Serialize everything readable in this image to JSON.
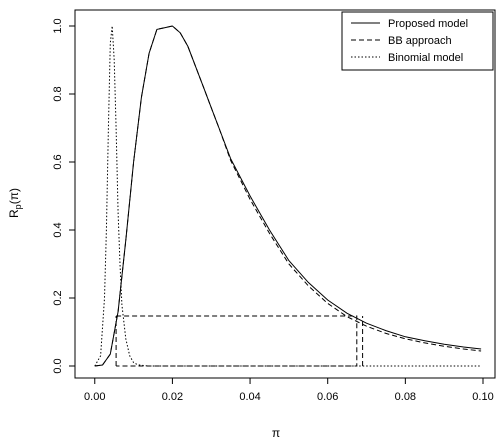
{
  "chart_data": {
    "type": "line",
    "xlabel": "π",
    "ylabel_main": "R",
    "ylabel_sub": "p",
    "ylabel_rest": "(π)",
    "xlim": [
      -0.002,
      0.1
    ],
    "ylim": [
      0,
      1
    ],
    "x_ticks": [
      {
        "value": 0.0,
        "label": "0.00"
      },
      {
        "value": 0.02,
        "label": "0.02"
      },
      {
        "value": 0.04,
        "label": "0.04"
      },
      {
        "value": 0.06,
        "label": "0.06"
      },
      {
        "value": 0.08,
        "label": "0.08"
      },
      {
        "value": 0.1,
        "label": "0.10"
      }
    ],
    "y_ticks": [
      {
        "value": 0.0,
        "label": "0.0"
      },
      {
        "value": 0.2,
        "label": "0.2"
      },
      {
        "value": 0.4,
        "label": "0.4"
      },
      {
        "value": 0.6,
        "label": "0.6"
      },
      {
        "value": 0.8,
        "label": "0.8"
      },
      {
        "value": 1.0,
        "label": "1.0"
      }
    ],
    "legend_position": "top-right",
    "series": [
      {
        "name": "Proposed model",
        "style": "solid",
        "x": [
          0.0,
          0.002,
          0.004,
          0.006,
          0.008,
          0.01,
          0.012,
          0.014,
          0.016,
          0.018,
          0.02,
          0.022,
          0.024,
          0.026,
          0.028,
          0.03,
          0.032,
          0.035,
          0.04,
          0.045,
          0.05,
          0.055,
          0.06,
          0.065,
          0.07,
          0.075,
          0.08,
          0.085,
          0.09,
          0.095,
          0.0995
        ],
        "y": [
          0.0,
          0.003,
          0.035,
          0.16,
          0.37,
          0.6,
          0.79,
          0.92,
          0.99,
          0.995,
          1.0,
          0.98,
          0.94,
          0.88,
          0.82,
          0.76,
          0.7,
          0.61,
          0.5,
          0.4,
          0.31,
          0.246,
          0.194,
          0.155,
          0.126,
          0.104,
          0.086,
          0.074,
          0.064,
          0.056,
          0.05
        ]
      },
      {
        "name": "BB approach",
        "style": "dashed",
        "x": [
          0.0,
          0.002,
          0.004,
          0.006,
          0.008,
          0.01,
          0.012,
          0.014,
          0.016,
          0.018,
          0.02,
          0.022,
          0.024,
          0.026,
          0.028,
          0.03,
          0.032,
          0.035,
          0.04,
          0.045,
          0.05,
          0.055,
          0.06,
          0.065,
          0.07,
          0.075,
          0.08,
          0.085,
          0.09,
          0.095,
          0.0995
        ],
        "y": [
          0.0,
          0.003,
          0.035,
          0.16,
          0.37,
          0.6,
          0.79,
          0.92,
          0.99,
          0.995,
          1.0,
          0.98,
          0.94,
          0.88,
          0.82,
          0.76,
          0.7,
          0.605,
          0.49,
          0.39,
          0.3,
          0.236,
          0.184,
          0.145,
          0.117,
          0.096,
          0.08,
          0.068,
          0.058,
          0.05,
          0.044
        ]
      },
      {
        "name": "Binomial model",
        "style": "dotted",
        "x": [
          0.0,
          0.0015,
          0.0025,
          0.003,
          0.0035,
          0.004,
          0.0045,
          0.005,
          0.0055,
          0.006,
          0.0065,
          0.007,
          0.008,
          0.009,
          0.01,
          0.011,
          0.012,
          0.013,
          0.014,
          0.016,
          0.02,
          0.04,
          0.06,
          0.08,
          0.0995
        ],
        "y": [
          0.0,
          0.03,
          0.2,
          0.4,
          0.7,
          0.95,
          1.0,
          0.9,
          0.7,
          0.45,
          0.3,
          0.18,
          0.08,
          0.03,
          0.01,
          0.004,
          0.002,
          0.001,
          0.0,
          0.0,
          0.0,
          0.0,
          0.0,
          0.0,
          0.0
        ]
      }
    ],
    "cutoff_level": 0.147,
    "cutoff_lines": [
      {
        "style": "dashed",
        "x": [
          0.0055,
          0.0675,
          0.0675,
          0.0055
        ],
        "y": [
          0.147,
          0.147,
          0.0,
          0.0
        ]
      },
      {
        "style": "dashed",
        "x": [
          0.0055,
          0.0055
        ],
        "y": [
          0.0,
          0.147
        ]
      },
      {
        "style": "dashed",
        "x": [
          0.069,
          0.069
        ],
        "y": [
          0.0,
          0.147
        ]
      }
    ]
  }
}
